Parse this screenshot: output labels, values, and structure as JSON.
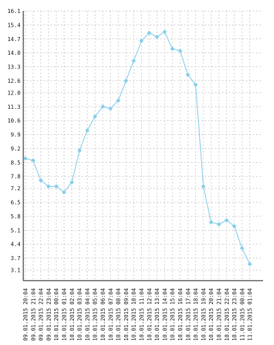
{
  "chart_data": {
    "type": "line",
    "x": [
      "09.01.2015 20:04",
      "09.01.2015 21:04",
      "09.01.2015 22:04",
      "09.01.2015 23:04",
      "10.01.2015 00:04",
      "10.01.2015 01:04",
      "10.01.2015 02:04",
      "10.01.2015 03:04",
      "10.01.2015 04:04",
      "10.01.2015 05:04",
      "10.01.2015 06:04",
      "10.01.2015 07:04",
      "10.01.2015 08:04",
      "10.01.2015 09:04",
      "10.01.2015 10:04",
      "10.01.2015 11:04",
      "10.01.2015 12:04",
      "10.01.2015 13:04",
      "10.01.2015 14:04",
      "10.01.2015 15:04",
      "10.01.2015 16:04",
      "10.01.2015 17:04",
      "10.01.2015 18:04",
      "10.01.2015 19:04",
      "10.01.2015 20:04",
      "10.01.2015 21:04",
      "10.01.2015 22:04",
      "10.01.2015 23:04",
      "11.01.2015 00:04",
      "11.01.2015 01:04"
    ],
    "series": [
      {
        "values": [
          8.7,
          8.6,
          7.6,
          7.3,
          7.3,
          7.0,
          7.5,
          9.1,
          10.1,
          10.8,
          11.3,
          11.2,
          11.6,
          12.6,
          13.6,
          14.6,
          15.0,
          14.8,
          15.05,
          14.2,
          14.1,
          12.9,
          12.4,
          7.3,
          5.5,
          5.4,
          5.6,
          5.3,
          4.2,
          3.4
        ]
      }
    ],
    "y_ticks": [
      "3.1",
      "3.7",
      "4.4",
      "5.1",
      "5.8",
      "6.5",
      "7.2",
      "7.8",
      "8.5",
      "9.2",
      "9.9",
      "10.6",
      "11.3",
      "12.0",
      "12.6",
      "13.3",
      "14.0",
      "14.7",
      "15.4",
      "16.1"
    ],
    "ylim": [
      2.57,
      16.1
    ],
    "grid": true,
    "colors": {
      "line": "#87ceeb",
      "marker": "#87ceeb",
      "grid": "#c8c8c8",
      "axis": "#000000"
    }
  }
}
